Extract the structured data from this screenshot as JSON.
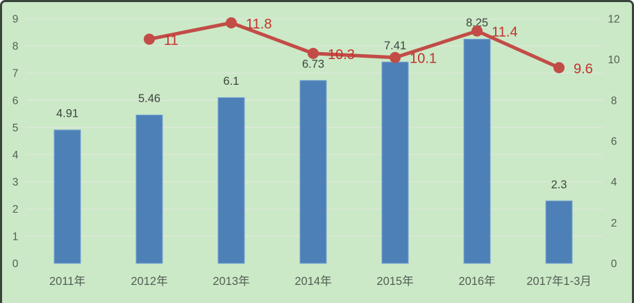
{
  "chart_data": {
    "type": "combo",
    "title": "",
    "legend": "none",
    "grid": true,
    "categories": [
      "2011年",
      "2012年",
      "2013年",
      "2014年",
      "2015年",
      "2016年",
      "2017年1-3月"
    ],
    "series": [
      {
        "name": "volume-bars",
        "type": "bar",
        "axis": "left",
        "values": [
          4.91,
          5.46,
          6.1,
          6.73,
          7.41,
          8.25,
          2.3
        ],
        "labels": [
          "4.91",
          "5.46",
          "6.1",
          "6.73",
          "7.41",
          "8.25",
          "2.3"
        ],
        "color": "#4e80b8",
        "edge_color": "#7aa5d3",
        "label_color": "#3c443c"
      },
      {
        "name": "growth-line",
        "type": "line",
        "axis": "right",
        "values": [
          null,
          11,
          11.8,
          10.3,
          10.1,
          11.4,
          9.6
        ],
        "labels": [
          "",
          "11",
          "11.8",
          "10.3",
          "10.1",
          "11.4",
          "9.6"
        ],
        "color": "#c24c46",
        "label_color": "#c2312e"
      }
    ],
    "left_axis": {
      "min": 0,
      "max": 9,
      "step": 1,
      "ticks": [
        0,
        1,
        2,
        3,
        4,
        5,
        6,
        7,
        8,
        9
      ]
    },
    "right_axis": {
      "min": 0,
      "max": 12,
      "step": 2,
      "ticks": [
        0,
        2,
        4,
        6,
        8,
        10,
        12
      ]
    },
    "colors": {
      "background": "#cbe9c7",
      "frame": "#3a433a",
      "gridline": "#dfe8d9",
      "axis_text": "#535e53"
    }
  }
}
